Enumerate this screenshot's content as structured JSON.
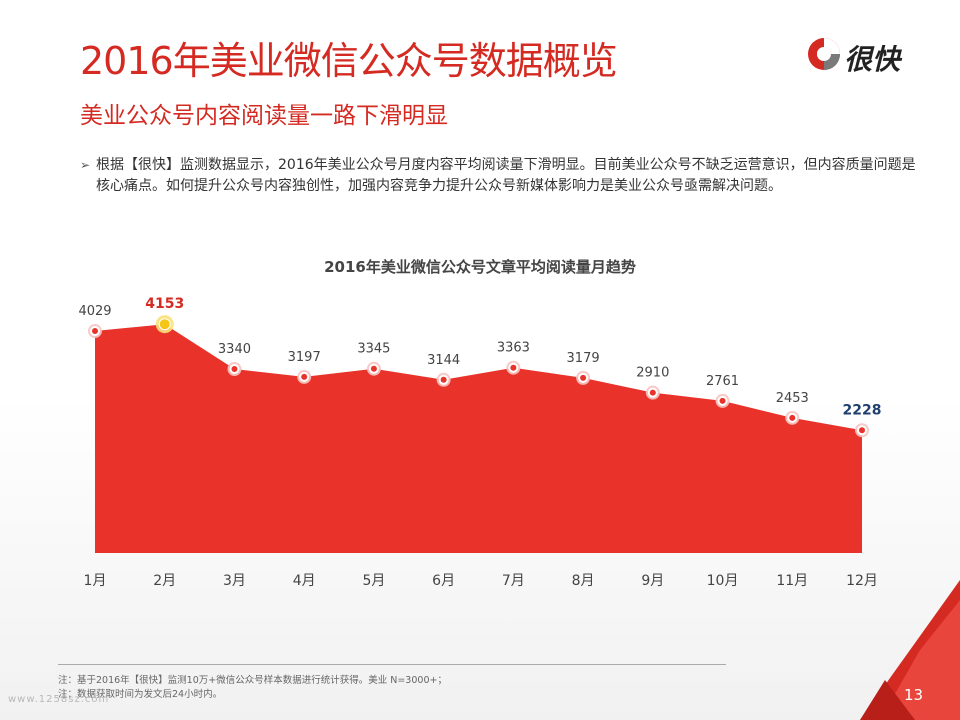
{
  "header": {
    "title": "2016年美业微信公众号数据概览",
    "subtitle": "美业公众号内容阅读量一路下滑明显",
    "logo_text": "很快"
  },
  "bullet": {
    "text": "根据【很快】监测数据显示，2016年美业公众号月度内容平均阅读量下滑明显。目前美业公众号不缺乏运营意识，但内容质量问题是核心痛点。如何提升公众号内容独创性，加强内容竞争力提升公众号新媒体影响力是美业公众号亟需解决问题。"
  },
  "chart_data": {
    "type": "area",
    "title": "2016年美业微信公众号文章平均阅读量月趋势",
    "categories": [
      "1月",
      "2月",
      "3月",
      "4月",
      "5月",
      "6月",
      "7月",
      "8月",
      "9月",
      "10月",
      "11月",
      "12月"
    ],
    "series": [
      {
        "values": [
          4029,
          4153,
          3340,
          3197,
          3345,
          3144,
          3363,
          3179,
          2910,
          2761,
          2453,
          2228
        ]
      }
    ],
    "data_labels": [
      "4029",
      "4153",
      "3340",
      "3197",
      "3345",
      "3144",
      "3363",
      "3179",
      "2910",
      "2761",
      "2453",
      "2228"
    ],
    "highlight": {
      "max_index": 1,
      "min_index": 11
    },
    "ylim": [
      0,
      5500
    ],
    "grid": false,
    "colors": {
      "fill": "#e8322a",
      "max_label": "#d42a22",
      "min_label": "#1f3f6e",
      "label": "#444444",
      "max_marker": "#f5c518"
    }
  },
  "footer": {
    "note_line1": "注：基于2016年【很快】监测10万+微信公众号样本数据进行统计获得。美业 N=3000+；",
    "note_line2": "注：数据获取时间为发文后24小时内。",
    "watermark": "www.1258sz.com",
    "page_number": "13"
  }
}
